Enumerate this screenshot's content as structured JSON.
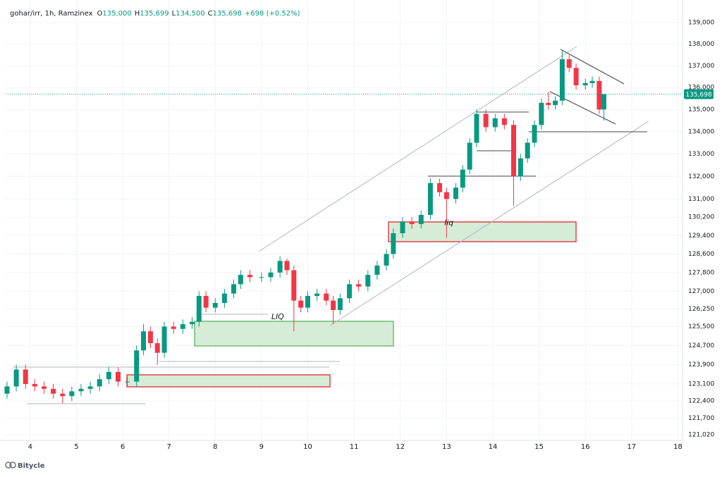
{
  "chart_data": {
    "type": "candlestick",
    "header": {
      "symbol": "gohar/irr, 1h, Ramzinex",
      "ohlc": [
        {
          "key": "O",
          "value": "135,000"
        },
        {
          "key": "H",
          "value": "135,699"
        },
        {
          "key": "L",
          "value": "134,500"
        },
        {
          "key": "C",
          "value": "135,698"
        }
      ],
      "change": "+698 (+0.52%)"
    },
    "brand": "Bitycle",
    "log_scale": true,
    "grid": true,
    "up_color": "#089981",
    "down_color": "#f23645",
    "xlim": [
      3.47,
      18.1
    ],
    "xticks": [
      4,
      5,
      6,
      7,
      8,
      9,
      10,
      11,
      12,
      13,
      14,
      15,
      16,
      17,
      18
    ],
    "ylim": [
      120790,
      140060
    ],
    "yticks": [
      {
        "value": 139000,
        "label": "139,000"
      },
      {
        "value": 138000,
        "label": "138,000"
      },
      {
        "value": 137000,
        "label": "137,000"
      },
      {
        "value": 136000,
        "label": "136,000"
      },
      {
        "value": 135000,
        "label": "135,000"
      },
      {
        "value": 134000,
        "label": "134,000"
      },
      {
        "value": 133000,
        "label": "133,000"
      },
      {
        "value": 132000,
        "label": "132,000"
      },
      {
        "value": 131000,
        "label": "131,000"
      },
      {
        "value": 130200,
        "label": "130,200"
      },
      {
        "value": 129400,
        "label": "129,400"
      },
      {
        "value": 128600,
        "label": "128,600"
      },
      {
        "value": 127800,
        "label": "127,800"
      },
      {
        "value": 127000,
        "label": "127,000"
      },
      {
        "value": 126250,
        "label": "126,250"
      },
      {
        "value": 125500,
        "label": "125,500"
      },
      {
        "value": 124700,
        "label": "124,700"
      },
      {
        "value": 123900,
        "label": "123,900"
      },
      {
        "value": 123100,
        "label": "123,100"
      },
      {
        "value": 122400,
        "label": "122,400"
      },
      {
        "value": 121700,
        "label": "121,700"
      },
      {
        "value": 121020,
        "label": "121,020"
      }
    ],
    "last_price": {
      "value": 135698,
      "label": "135,698"
    },
    "annotations": [
      {
        "text": "LIQ",
        "x": 9.35,
        "y": 125900
      },
      {
        "text": "liq",
        "x": 13.05,
        "y": 129950
      }
    ],
    "x": [
      3.5,
      3.7,
      3.9,
      4.1,
      4.3,
      4.5,
      4.7,
      4.9,
      5.1,
      5.3,
      5.5,
      5.7,
      5.9,
      6.1,
      6.3,
      6.45,
      6.6,
      6.75,
      6.9,
      7.1,
      7.3,
      7.5,
      7.65,
      7.8,
      8.0,
      8.2,
      8.4,
      8.55,
      8.75,
      9.0,
      9.2,
      9.4,
      9.55,
      9.7,
      9.85,
      10.0,
      10.2,
      10.4,
      10.55,
      10.7,
      10.9,
      11.1,
      11.3,
      11.5,
      11.7,
      11.85,
      12.05,
      12.25,
      12.45,
      12.65,
      12.85,
      13.0,
      13.2,
      13.35,
      13.5,
      13.65,
      13.85,
      14.05,
      14.25,
      14.45,
      14.6,
      14.75,
      14.9,
      15.05,
      15.2,
      15.35,
      15.5,
      15.65,
      15.8,
      16.0,
      16.15,
      16.3,
      16.4
    ],
    "open": [
      122700,
      123000,
      123700,
      123100,
      123000,
      122900,
      122700,
      122600,
      122800,
      122900,
      123000,
      123300,
      123600,
      123200,
      123200,
      124500,
      125300,
      124800,
      124400,
      125500,
      125400,
      125600,
      125700,
      126800,
      126300,
      126500,
      126900,
      127300,
      127700,
      127600,
      127600,
      127800,
      128300,
      127900,
      126600,
      126300,
      126800,
      126900,
      126600,
      126200,
      126700,
      127300,
      127200,
      127700,
      128100,
      128600,
      129500,
      130000,
      129900,
      130300,
      131700,
      131300,
      131000,
      131500,
      132300,
      133500,
      134800,
      134200,
      134600,
      134300,
      132000,
      132800,
      133500,
      134300,
      135300,
      135200,
      135400,
      137300,
      136900,
      136100,
      136200,
      136300,
      135000
    ],
    "high": [
      123200,
      123900,
      123900,
      123300,
      123200,
      123100,
      122900,
      123000,
      123100,
      123200,
      123500,
      123800,
      123800,
      123400,
      124700,
      125600,
      125500,
      125000,
      125700,
      125700,
      125800,
      125900,
      127000,
      127000,
      126700,
      127100,
      127500,
      127900,
      127900,
      127800,
      128000,
      128500,
      128400,
      128100,
      126800,
      127000,
      127100,
      127100,
      126800,
      126900,
      127500,
      127500,
      127900,
      128300,
      128800,
      129700,
      130200,
      130200,
      130500,
      131900,
      131900,
      131500,
      131700,
      132500,
      133700,
      135000,
      135000,
      134800,
      134800,
      134500,
      133000,
      133700,
      134500,
      135500,
      135800,
      135600,
      137700,
      137500,
      137100,
      136400,
      136500,
      136500,
      135699
    ],
    "low": [
      122500,
      122800,
      122900,
      122800,
      122700,
      122500,
      122300,
      122400,
      122600,
      122700,
      122800,
      123100,
      123000,
      123000,
      123000,
      124300,
      124600,
      123900,
      124200,
      125200,
      125200,
      125400,
      125500,
      126100,
      126100,
      126300,
      126700,
      127100,
      127400,
      127400,
      127400,
      127600,
      127700,
      125300,
      126100,
      126100,
      126600,
      126400,
      125600,
      126000,
      126500,
      127000,
      127000,
      127500,
      127900,
      128400,
      129300,
      129700,
      129700,
      130100,
      131100,
      129300,
      130800,
      131300,
      132100,
      133300,
      134000,
      134000,
      134100,
      130700,
      131800,
      132600,
      133300,
      134100,
      135000,
      135000,
      135200,
      136700,
      135900,
      135900,
      136000,
      134800,
      134500
    ],
    "close": [
      123000,
      123700,
      123100,
      123000,
      122900,
      122700,
      122600,
      122800,
      122900,
      123000,
      123300,
      123600,
      123200,
      123200,
      124500,
      125300,
      124800,
      124400,
      125500,
      125400,
      125600,
      125700,
      126800,
      126300,
      126500,
      126900,
      127300,
      127700,
      127600,
      127600,
      127800,
      128300,
      127900,
      126600,
      126300,
      126800,
      126900,
      126600,
      126200,
      126700,
      127300,
      127200,
      127700,
      128100,
      128600,
      129500,
      130000,
      129900,
      130300,
      131700,
      131300,
      131000,
      131500,
      132300,
      133500,
      134800,
      134200,
      134600,
      134300,
      132000,
      132800,
      133500,
      134300,
      135300,
      135200,
      135400,
      137300,
      136900,
      136100,
      136200,
      136300,
      135000,
      135698
    ]
  }
}
